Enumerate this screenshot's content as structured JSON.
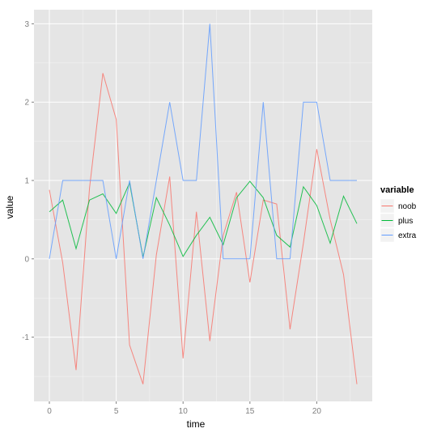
{
  "chart_data": {
    "type": "line",
    "title": "",
    "xlabel": "time",
    "ylabel": "value",
    "xlim": [
      -1.15,
      24.15
    ],
    "ylim": [
      -1.82,
      3.18
    ],
    "x_ticks": [
      0,
      5,
      10,
      15,
      20
    ],
    "y_ticks": [
      -1,
      0,
      1,
      2,
      3
    ],
    "grid": true,
    "background": "#e5e5e5",
    "grid_color": "#ffffff",
    "legend": {
      "title": "variable",
      "placement": "right"
    },
    "x": [
      0,
      1,
      2,
      3,
      4,
      5,
      6,
      7,
      8,
      9,
      10,
      11,
      12,
      13,
      14,
      15,
      16,
      17,
      18,
      19,
      20,
      21,
      22,
      23
    ],
    "series": [
      {
        "name": "noob",
        "color": "#f8766d",
        "values": [
          0.88,
          -0.05,
          -1.42,
          0.9,
          2.37,
          1.78,
          -1.1,
          -1.6,
          0.05,
          1.05,
          -1.27,
          0.6,
          -1.05,
          0.3,
          0.85,
          -0.3,
          0.75,
          0.7,
          -0.9,
          0.2,
          1.4,
          0.5,
          -0.2,
          -1.6
        ]
      },
      {
        "name": "plus",
        "color": "#00ba38",
        "values": [
          0.6,
          0.75,
          0.13,
          0.75,
          0.83,
          0.58,
          0.97,
          0.02,
          0.78,
          0.43,
          0.03,
          0.3,
          0.53,
          0.18,
          0.78,
          0.99,
          0.78,
          0.3,
          0.15,
          0.92,
          0.68,
          0.2,
          0.8,
          0.45
        ]
      },
      {
        "name": "extra",
        "color": "#619cff",
        "values": [
          0,
          1,
          1,
          1,
          1,
          0,
          1,
          0,
          1,
          2,
          1,
          1,
          3,
          0,
          0,
          0,
          2,
          0,
          0,
          2,
          2,
          1,
          1,
          1
        ]
      }
    ]
  }
}
